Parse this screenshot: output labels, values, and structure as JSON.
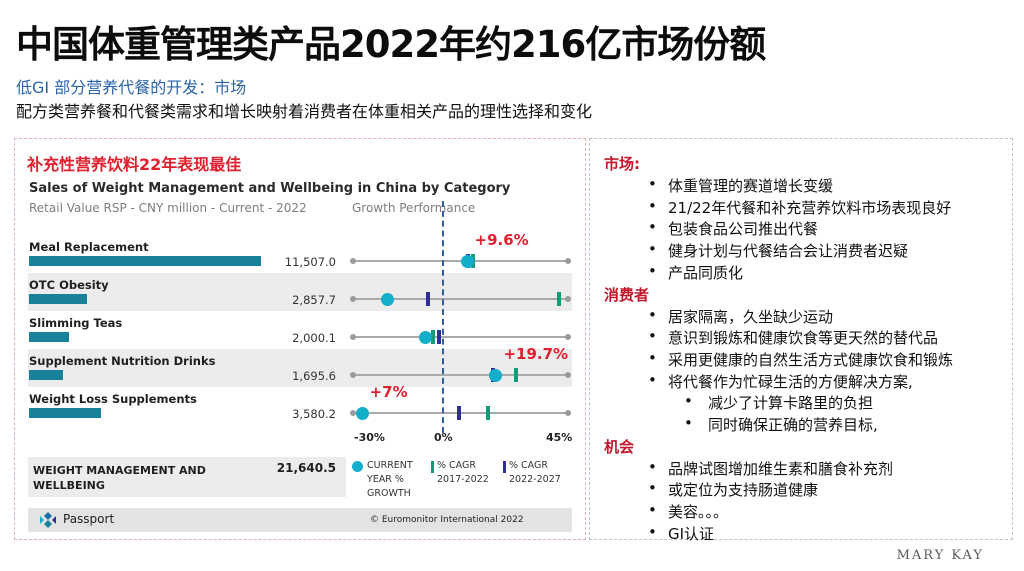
{
  "title": "中国体重管理类产品2022年约216亿市场份额",
  "subtitle1": "低GI 部分营养代餐的开发：市场",
  "subtitle2": "配方类营养餐和代餐类需求和增长映射着消费者在体重相关产品的理性选择和变化",
  "left_panel": {
    "heading": "补充性营养饮料22年表现最佳",
    "footer_brand": "Passport",
    "copyright": "© Euromonitor International 2022"
  },
  "chart_data": {
    "type": "bar",
    "title": "Sales of Weight Management and Wellbeing in China by Category",
    "subtitle": "Retail Value RSP - CNY million - Current - 2022",
    "growth_header": "Growth Performance",
    "categories": [
      "Meal Replacement",
      "OTC Obesity",
      "Slimming Teas",
      "Supplement Nutrition Drinks",
      "Weight Loss Supplements"
    ],
    "values": [
      11507.0,
      2857.7,
      2000.1,
      1695.6,
      3580.2
    ],
    "value_labels": [
      "11,507.0",
      "2,857.7",
      "2,000.1",
      "1,695.6",
      "3,580.2"
    ],
    "growth_axis": {
      "min": -30,
      "max": 45,
      "ticks": [
        "-30%",
        "0%",
        "45%"
      ]
    },
    "current_year_growth": [
      9.6,
      -18,
      -5,
      19.7,
      -27
    ],
    "cagr_2017_2022": [
      12,
      42,
      -2,
      27,
      17
    ],
    "cagr_2022_2027": [
      10,
      -4,
      0,
      19,
      7
    ],
    "callouts": [
      "+9.6%",
      null,
      null,
      "+19.7%",
      "+7%"
    ],
    "total": {
      "label": "WEIGHT MANAGEMENT AND WELLBEING",
      "value": "21,640.5"
    },
    "legend": {
      "current": "CURRENT YEAR % GROWTH",
      "cagr_hist": "% CAGR 2017-2022",
      "cagr_fcst": "% CAGR 2022-2027"
    },
    "colors": {
      "bar": "#19819a",
      "current": "#13aec9",
      "cagr_hist": "#139c7a",
      "cagr_fcst": "#2d2f93",
      "callout": "#e0202e"
    }
  },
  "right_panel": {
    "sections": [
      {
        "heading": "市场:",
        "items": [
          {
            "text": "体重管理的赛道增长变缓",
            "level": 1
          },
          {
            "text": "21/22年代餐和补充营养饮料市场表现良好",
            "level": 1
          },
          {
            "text": "包装食品公司推出代餐",
            "level": 1
          },
          {
            "text": "健身计划与代餐结合会让消费者迟疑",
            "level": 1
          },
          {
            "text": "产品同质化",
            "level": 1
          }
        ]
      },
      {
        "heading": "消费者",
        "items": [
          {
            "text": "居家隔离，久坐缺少运动",
            "level": 1
          },
          {
            "text": "意识到锻炼和健康饮食等更天然的替代品",
            "level": 1
          },
          {
            "text": "采用更健康的自然生活方式健康饮食和锻炼",
            "level": 1
          },
          {
            "text": "将代餐作为忙碌生活的方便解决方案,",
            "level": 1
          },
          {
            "text": "减少了计算卡路里的负担",
            "level": 2
          },
          {
            "text": "同时确保正确的营养目标,",
            "level": 2
          }
        ]
      },
      {
        "heading": "机会",
        "items": [
          {
            "text": "品牌试图增加维生素和膳食补充剂",
            "level": 1
          },
          {
            "text": "或定位为支持肠道健康",
            "level": 1
          },
          {
            "text": "美容。。。",
            "level": 1
          },
          {
            "text": "GI认证",
            "level": 1
          }
        ]
      }
    ]
  },
  "brand": "MARY KAY"
}
